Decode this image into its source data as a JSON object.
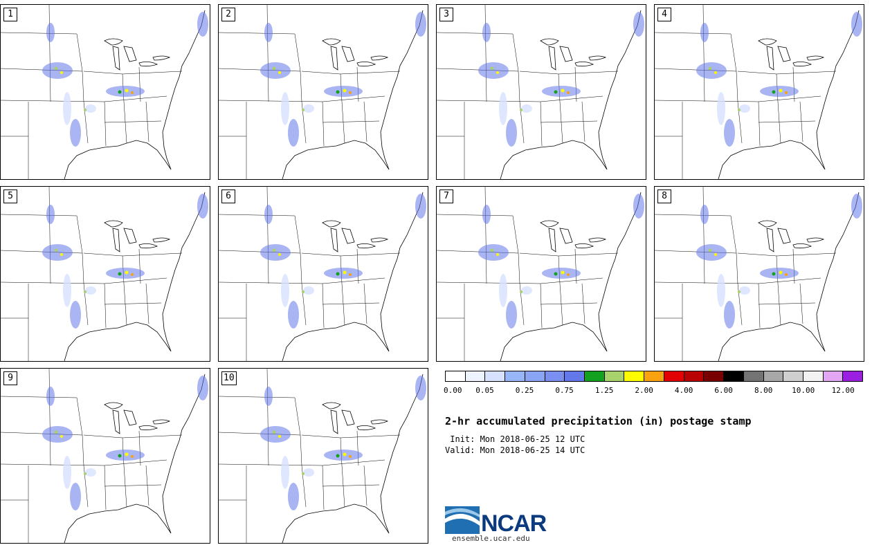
{
  "panels": [
    {
      "label": "1"
    },
    {
      "label": "2"
    },
    {
      "label": "3"
    },
    {
      "label": "4"
    },
    {
      "label": "5"
    },
    {
      "label": "6"
    },
    {
      "label": "7"
    },
    {
      "label": "8"
    },
    {
      "label": "9"
    },
    {
      "label": "10"
    }
  ],
  "colorbar": {
    "colors": [
      "#ffffff",
      "#eef4ff",
      "#d6e2ff",
      "#97b5f7",
      "#8aa5f4",
      "#7b8ff0",
      "#6478ea",
      "#13a21f",
      "#a8d06c",
      "#fffc00",
      "#f9a20f",
      "#e20000",
      "#b90000",
      "#7a0000",
      "#000000",
      "#737373",
      "#a8a8a8",
      "#cfcfcf",
      "#f2f2f2",
      "#e2a6f2",
      "#9b1fe0"
    ],
    "ticks": [
      "0.00",
      "0.05",
      "0.25",
      "0.75",
      "1.25",
      "2.00",
      "4.00",
      "6.00",
      "8.00",
      "10.00",
      "12.00"
    ]
  },
  "title": "2-hr accumulated precipitation (in) postage stamp",
  "init": " Init: Mon 2018-06-25 12 UTC",
  "valid": "Valid: Mon 2018-06-25 14 UTC",
  "logo": {
    "text": "NCAR",
    "url": "ensemble.ucar.edu"
  }
}
